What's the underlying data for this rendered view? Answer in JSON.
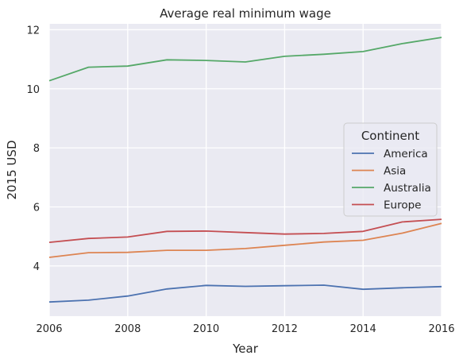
{
  "chart_data": {
    "type": "line",
    "title": "Average real minimum wage",
    "xlabel": "Year",
    "ylabel": "2015 USD",
    "xlim": [
      2006,
      2016
    ],
    "ylim": [
      2.3,
      12.2
    ],
    "x_ticks": [
      2006,
      2008,
      2010,
      2012,
      2014,
      2016
    ],
    "y_ticks": [
      4,
      6,
      8,
      10,
      12
    ],
    "grid": true,
    "background": "#eaeaf2",
    "x": [
      2006,
      2007,
      2008,
      2009,
      2010,
      2011,
      2012,
      2013,
      2014,
      2015,
      2016
    ],
    "legend": {
      "title": "Continent",
      "position": "right"
    },
    "series": [
      {
        "name": "America",
        "color": "#4c72b0",
        "values": [
          2.78,
          2.84,
          2.98,
          3.22,
          3.34,
          3.31,
          3.33,
          3.35,
          3.21,
          3.26,
          3.3
        ]
      },
      {
        "name": "Asia",
        "color": "#dd8452",
        "values": [
          4.29,
          4.45,
          4.46,
          4.53,
          4.53,
          4.59,
          4.7,
          4.81,
          4.87,
          5.11,
          5.44
        ]
      },
      {
        "name": "Australia",
        "color": "#55a868",
        "values": [
          10.27,
          10.73,
          10.77,
          10.98,
          10.96,
          10.91,
          11.1,
          11.17,
          11.26,
          11.53,
          11.74
        ]
      },
      {
        "name": "Europe",
        "color": "#c44e52",
        "values": [
          4.8,
          4.93,
          4.98,
          5.17,
          5.18,
          5.13,
          5.08,
          5.1,
          5.17,
          5.49,
          5.58
        ]
      }
    ]
  }
}
